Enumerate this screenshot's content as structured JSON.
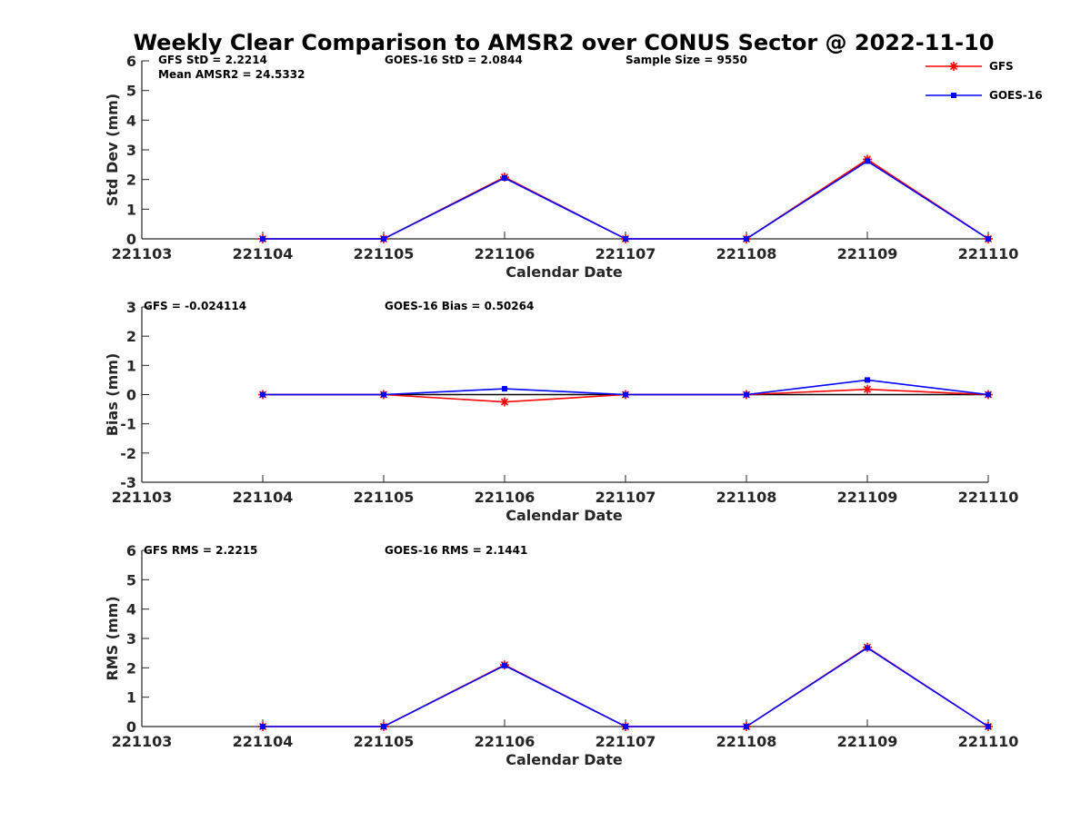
{
  "title": "Weekly Clear Comparison to AMSR2 over CONUS Sector @ 2022-11-10",
  "legend": {
    "placement": "top-right",
    "entries": [
      {
        "name": "GFS",
        "color": "#ff0000",
        "marker": "asterisk"
      },
      {
        "name": "GOES-16",
        "color": "#0000ff",
        "marker": "square"
      }
    ]
  },
  "chart_data": [
    {
      "type": "line",
      "xlabel": "Calendar Date",
      "ylabel": "Std Dev (mm)",
      "x": [
        "221103",
        "221104",
        "221105",
        "221106",
        "221107",
        "221108",
        "221109",
        "221110"
      ],
      "ylim": [
        0,
        6
      ],
      "yticks": [
        "0",
        "1",
        "2",
        "3",
        "4",
        "5",
        "6"
      ],
      "zero_line": false,
      "annotations": [
        "GFS StD = 2.2214",
        "Mean AMSR2 = 24.5332",
        "GOES-16 StD = 2.0844",
        "Sample Size = 9550"
      ],
      "series": [
        {
          "name": "GFS",
          "color": "#ff0000",
          "marker": "asterisk",
          "values": [
            null,
            0,
            0,
            2.08,
            0,
            0,
            2.68,
            0
          ]
        },
        {
          "name": "GOES-16",
          "color": "#0000ff",
          "marker": "square",
          "values": [
            null,
            0,
            0,
            2.05,
            0,
            0,
            2.62,
            0
          ]
        }
      ]
    },
    {
      "type": "line",
      "xlabel": "Calendar Date",
      "ylabel": "Bias (mm)",
      "x": [
        "221103",
        "221104",
        "221105",
        "221106",
        "221107",
        "221108",
        "221109",
        "221110"
      ],
      "ylim": [
        -3,
        3
      ],
      "yticks": [
        "-3",
        "-2",
        "-1",
        "0",
        "1",
        "2",
        "3"
      ],
      "zero_line": true,
      "annotations": [
        "GFS = -0.024114",
        "GOES-16 Bias  = 0.50264"
      ],
      "series": [
        {
          "name": "GFS",
          "color": "#ff0000",
          "marker": "asterisk",
          "values": [
            null,
            0,
            0,
            -0.25,
            0,
            0,
            0.18,
            0
          ]
        },
        {
          "name": "GOES-16",
          "color": "#0000ff",
          "marker": "square",
          "values": [
            null,
            0,
            0,
            0.2,
            0,
            0,
            0.5,
            0
          ]
        }
      ]
    },
    {
      "type": "line",
      "xlabel": "Calendar Date",
      "ylabel": "RMS (mm)",
      "x": [
        "221103",
        "221104",
        "221105",
        "221106",
        "221107",
        "221108",
        "221109",
        "221110"
      ],
      "ylim": [
        0,
        6
      ],
      "yticks": [
        "0",
        "1",
        "2",
        "3",
        "4",
        "5",
        "6"
      ],
      "zero_line": false,
      "annotations": [
        "GFS RMS = 2.2215",
        "GOES-16 RMS = 2.1441"
      ],
      "series": [
        {
          "name": "GFS",
          "color": "#ff0000",
          "marker": "asterisk",
          "values": [
            null,
            0,
            0,
            2.1,
            0,
            0,
            2.7,
            0
          ]
        },
        {
          "name": "GOES-16",
          "color": "#0000ff",
          "marker": "square",
          "values": [
            null,
            0,
            0,
            2.08,
            0,
            0,
            2.68,
            0
          ]
        }
      ]
    }
  ]
}
